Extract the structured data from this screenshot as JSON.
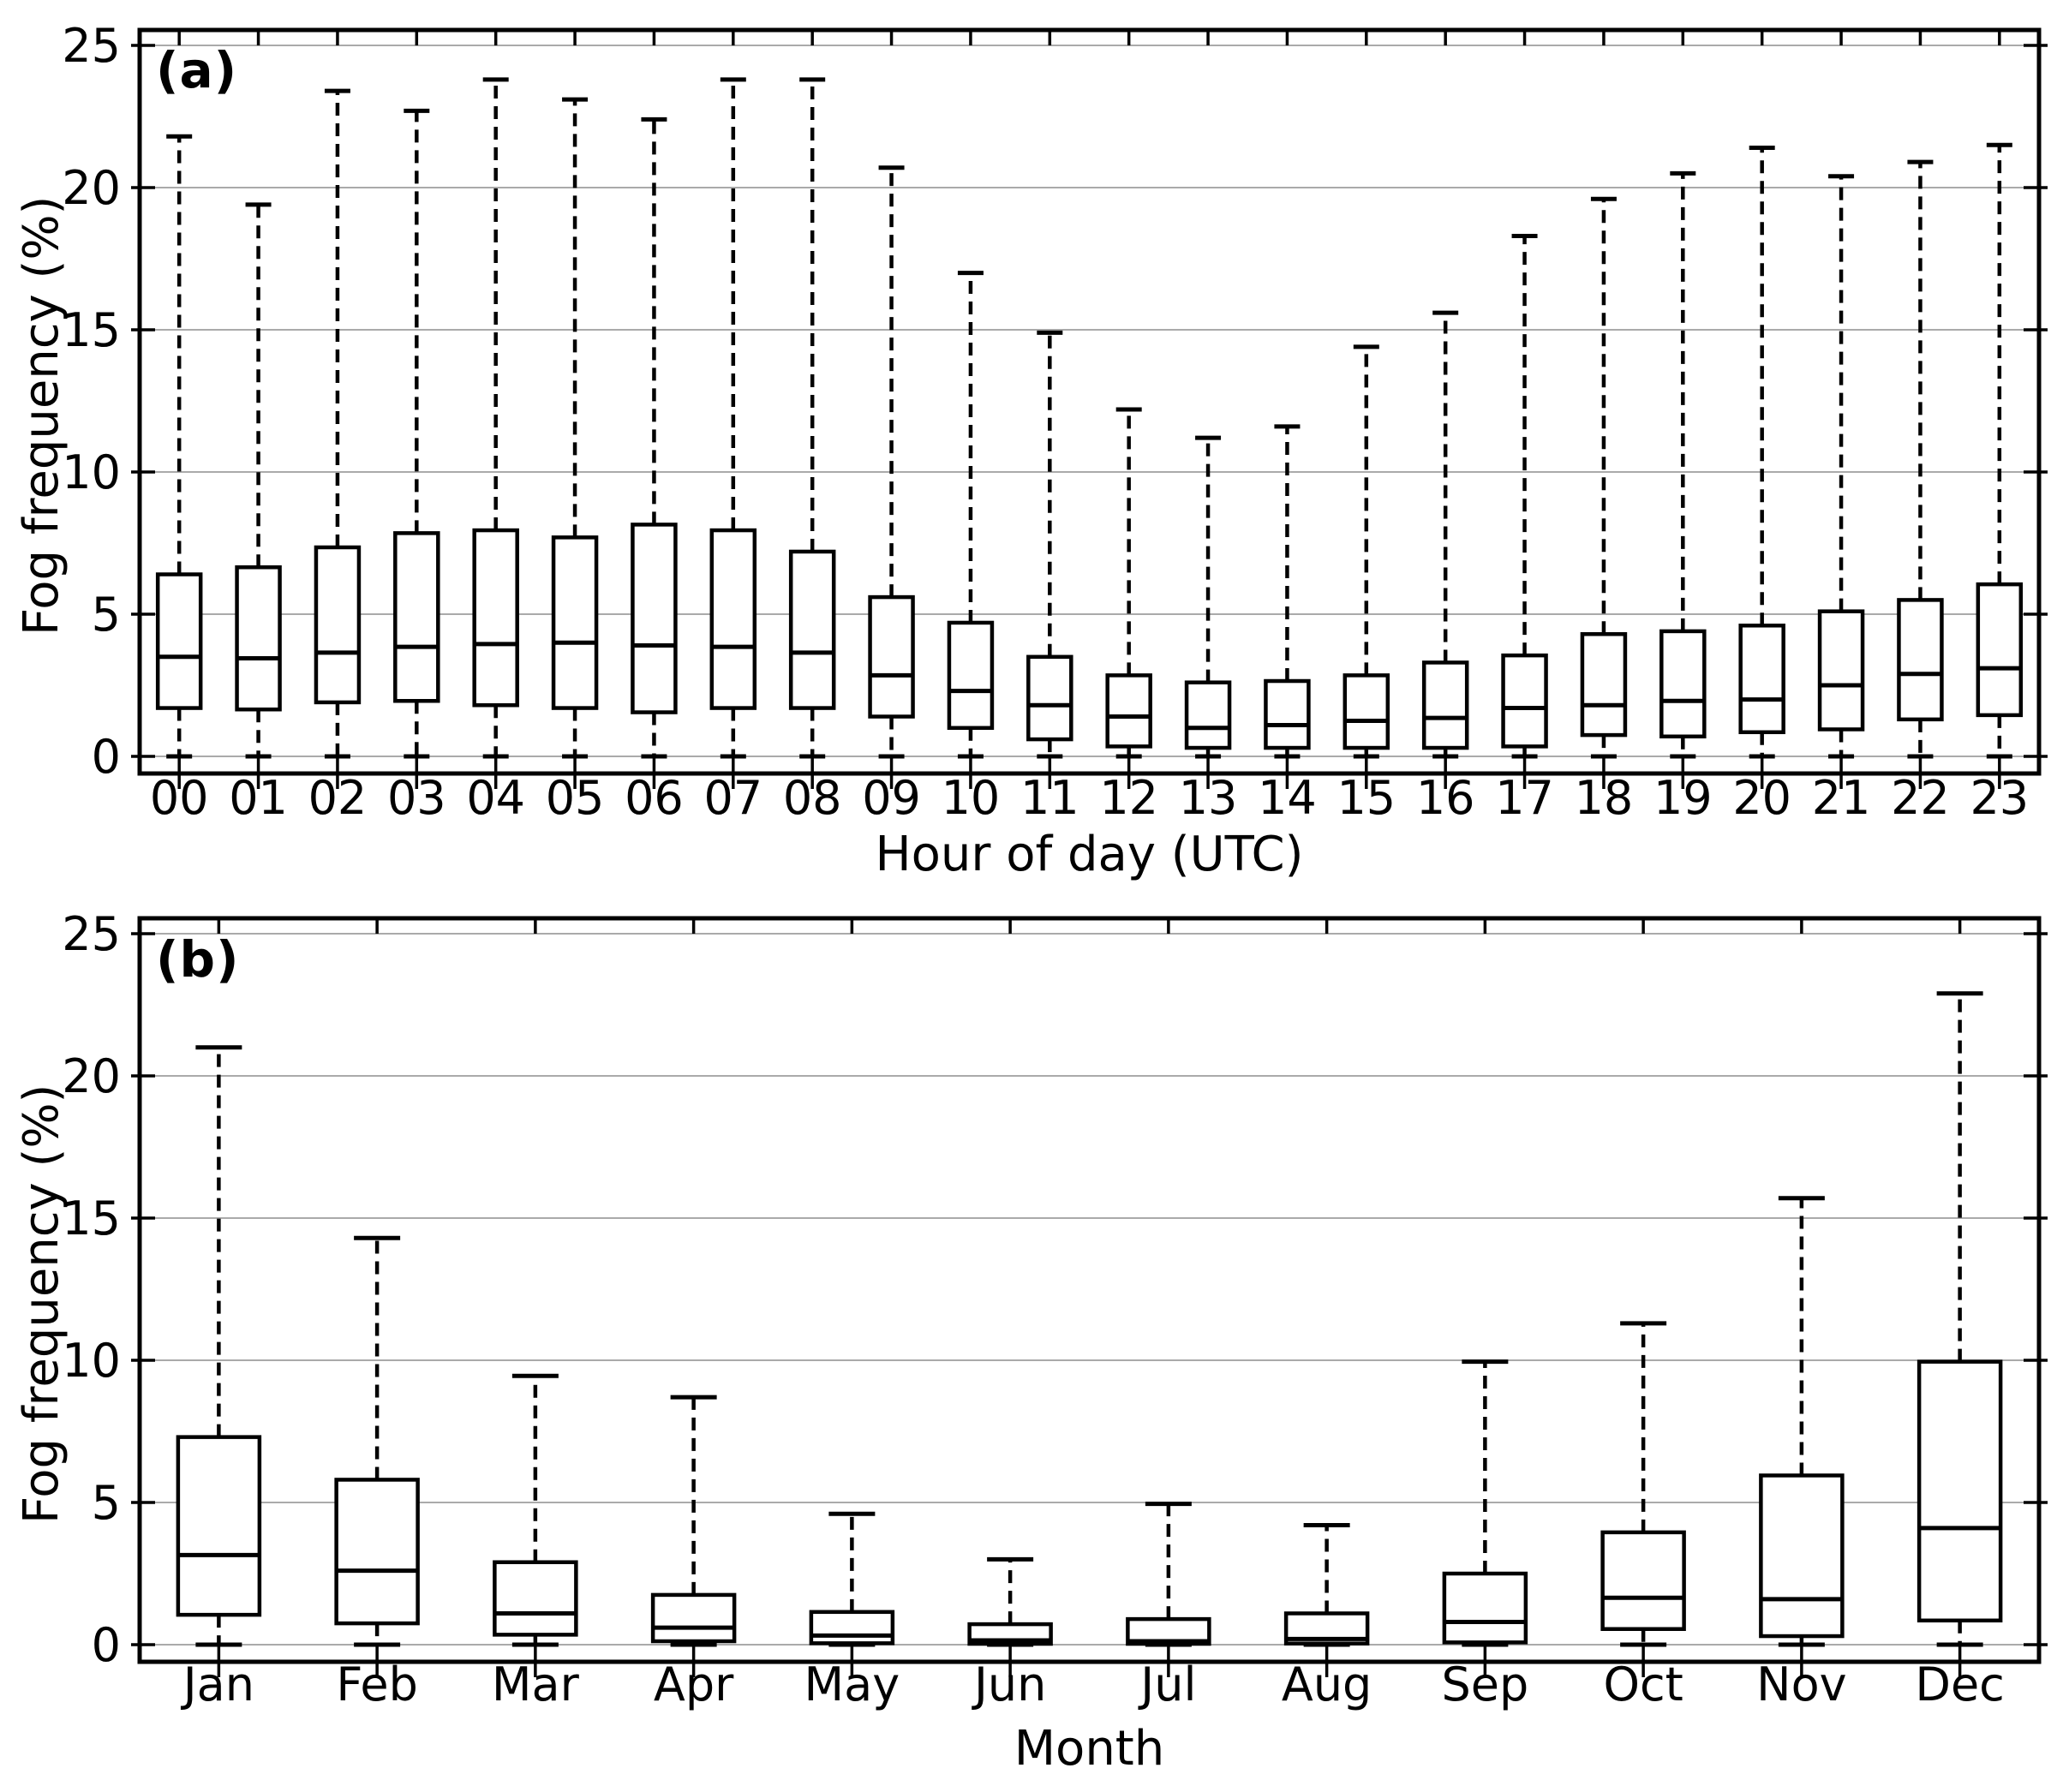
{
  "figure": {
    "background": "#ffffff",
    "foreground": "#000000",
    "gridline_color": "#aaaaaa"
  },
  "chart_data": [
    {
      "type": "boxplot",
      "panel_label": "(a)",
      "xlabel": "Hour of day (UTC)",
      "ylabel": "Fog frequency (%)",
      "ylim": [
        0,
        25
      ],
      "yticks": [
        0,
        5,
        10,
        15,
        20,
        25
      ],
      "grid": "horizontal",
      "legend": "none",
      "categories": [
        "00",
        "01",
        "02",
        "03",
        "04",
        "05",
        "06",
        "07",
        "08",
        "09",
        "10",
        "11",
        "12",
        "13",
        "14",
        "15",
        "16",
        "17",
        "18",
        "19",
        "20",
        "21",
        "22",
        "23"
      ],
      "boxes": [
        {
          "whislo": 0,
          "q1": 1.7,
          "med": 3.5,
          "q3": 6.4,
          "whishi": 21.8
        },
        {
          "whislo": 0,
          "q1": 1.65,
          "med": 3.45,
          "q3": 6.65,
          "whishi": 19.4
        },
        {
          "whislo": 0,
          "q1": 1.9,
          "med": 3.65,
          "q3": 7.35,
          "whishi": 23.4
        },
        {
          "whislo": 0,
          "q1": 1.95,
          "med": 3.85,
          "q3": 7.85,
          "whishi": 22.7
        },
        {
          "whislo": 0,
          "q1": 1.8,
          "med": 3.95,
          "q3": 7.95,
          "whishi": 23.8
        },
        {
          "whislo": 0,
          "q1": 1.7,
          "med": 4.0,
          "q3": 7.7,
          "whishi": 23.1
        },
        {
          "whislo": 0,
          "q1": 1.55,
          "med": 3.9,
          "q3": 8.15,
          "whishi": 22.4
        },
        {
          "whislo": 0,
          "q1": 1.7,
          "med": 3.85,
          "q3": 7.95,
          "whishi": 23.8
        },
        {
          "whislo": 0,
          "q1": 1.7,
          "med": 3.65,
          "q3": 7.2,
          "whishi": 23.8
        },
        {
          "whislo": 0,
          "q1": 1.4,
          "med": 2.85,
          "q3": 5.6,
          "whishi": 20.7
        },
        {
          "whislo": 0,
          "q1": 1.0,
          "med": 2.3,
          "q3": 4.7,
          "whishi": 17.0
        },
        {
          "whislo": 0,
          "q1": 0.6,
          "med": 1.8,
          "q3": 3.5,
          "whishi": 14.9
        },
        {
          "whislo": 0,
          "q1": 0.35,
          "med": 1.4,
          "q3": 2.85,
          "whishi": 12.2
        },
        {
          "whislo": 0,
          "q1": 0.3,
          "med": 1.0,
          "q3": 2.6,
          "whishi": 11.2
        },
        {
          "whislo": 0,
          "q1": 0.3,
          "med": 1.1,
          "q3": 2.65,
          "whishi": 11.6
        },
        {
          "whislo": 0,
          "q1": 0.3,
          "med": 1.25,
          "q3": 2.85,
          "whishi": 14.4
        },
        {
          "whislo": 0,
          "q1": 0.3,
          "med": 1.35,
          "q3": 3.3,
          "whishi": 15.6
        },
        {
          "whislo": 0,
          "q1": 0.35,
          "med": 1.7,
          "q3": 3.55,
          "whishi": 18.3
        },
        {
          "whislo": 0,
          "q1": 0.75,
          "med": 1.8,
          "q3": 4.3,
          "whishi": 19.6
        },
        {
          "whislo": 0,
          "q1": 0.7,
          "med": 1.95,
          "q3": 4.4,
          "whishi": 20.5
        },
        {
          "whislo": 0,
          "q1": 0.85,
          "med": 2.0,
          "q3": 4.6,
          "whishi": 21.4
        },
        {
          "whislo": 0,
          "q1": 0.95,
          "med": 2.5,
          "q3": 5.1,
          "whishi": 20.4
        },
        {
          "whislo": 0,
          "q1": 1.3,
          "med": 2.9,
          "q3": 5.5,
          "whishi": 20.9
        },
        {
          "whislo": 0,
          "q1": 1.45,
          "med": 3.1,
          "q3": 6.05,
          "whishi": 21.5
        }
      ]
    },
    {
      "type": "boxplot",
      "panel_label": "(b)",
      "xlabel": "Month",
      "ylabel": "Fog frequency (%)",
      "ylim": [
        0,
        25
      ],
      "yticks": [
        0,
        5,
        10,
        15,
        20,
        25
      ],
      "grid": "horizontal",
      "legend": "none",
      "categories": [
        "Jan",
        "Feb",
        "Mar",
        "Apr",
        "May",
        "Jun",
        "Jul",
        "Aug",
        "Sep",
        "Oct",
        "Nov",
        "Dec"
      ],
      "boxes": [
        {
          "whislo": 0,
          "q1": 1.05,
          "med": 3.15,
          "q3": 7.3,
          "whishi": 21.0
        },
        {
          "whislo": 0,
          "q1": 0.75,
          "med": 2.6,
          "q3": 5.8,
          "whishi": 14.3
        },
        {
          "whislo": 0,
          "q1": 0.35,
          "med": 1.1,
          "q3": 2.9,
          "whishi": 9.45
        },
        {
          "whislo": 0,
          "q1": 0.12,
          "med": 0.6,
          "q3": 1.75,
          "whishi": 8.7
        },
        {
          "whislo": 0,
          "q1": 0.05,
          "med": 0.32,
          "q3": 1.15,
          "whishi": 4.6
        },
        {
          "whislo": 0,
          "q1": 0.03,
          "med": 0.15,
          "q3": 0.72,
          "whishi": 3.0
        },
        {
          "whislo": 0,
          "q1": 0.03,
          "med": 0.12,
          "q3": 0.9,
          "whishi": 4.95
        },
        {
          "whislo": 0,
          "q1": 0.04,
          "med": 0.2,
          "q3": 1.1,
          "whishi": 4.2
        },
        {
          "whislo": 0,
          "q1": 0.08,
          "med": 0.8,
          "q3": 2.5,
          "whishi": 9.95
        },
        {
          "whislo": 0,
          "q1": 0.55,
          "med": 1.65,
          "q3": 3.95,
          "whishi": 11.3
        },
        {
          "whislo": 0,
          "q1": 0.3,
          "med": 1.6,
          "q3": 5.95,
          "whishi": 15.7
        },
        {
          "whislo": 0,
          "q1": 0.85,
          "med": 4.1,
          "q3": 9.95,
          "whishi": 22.9
        }
      ]
    }
  ]
}
